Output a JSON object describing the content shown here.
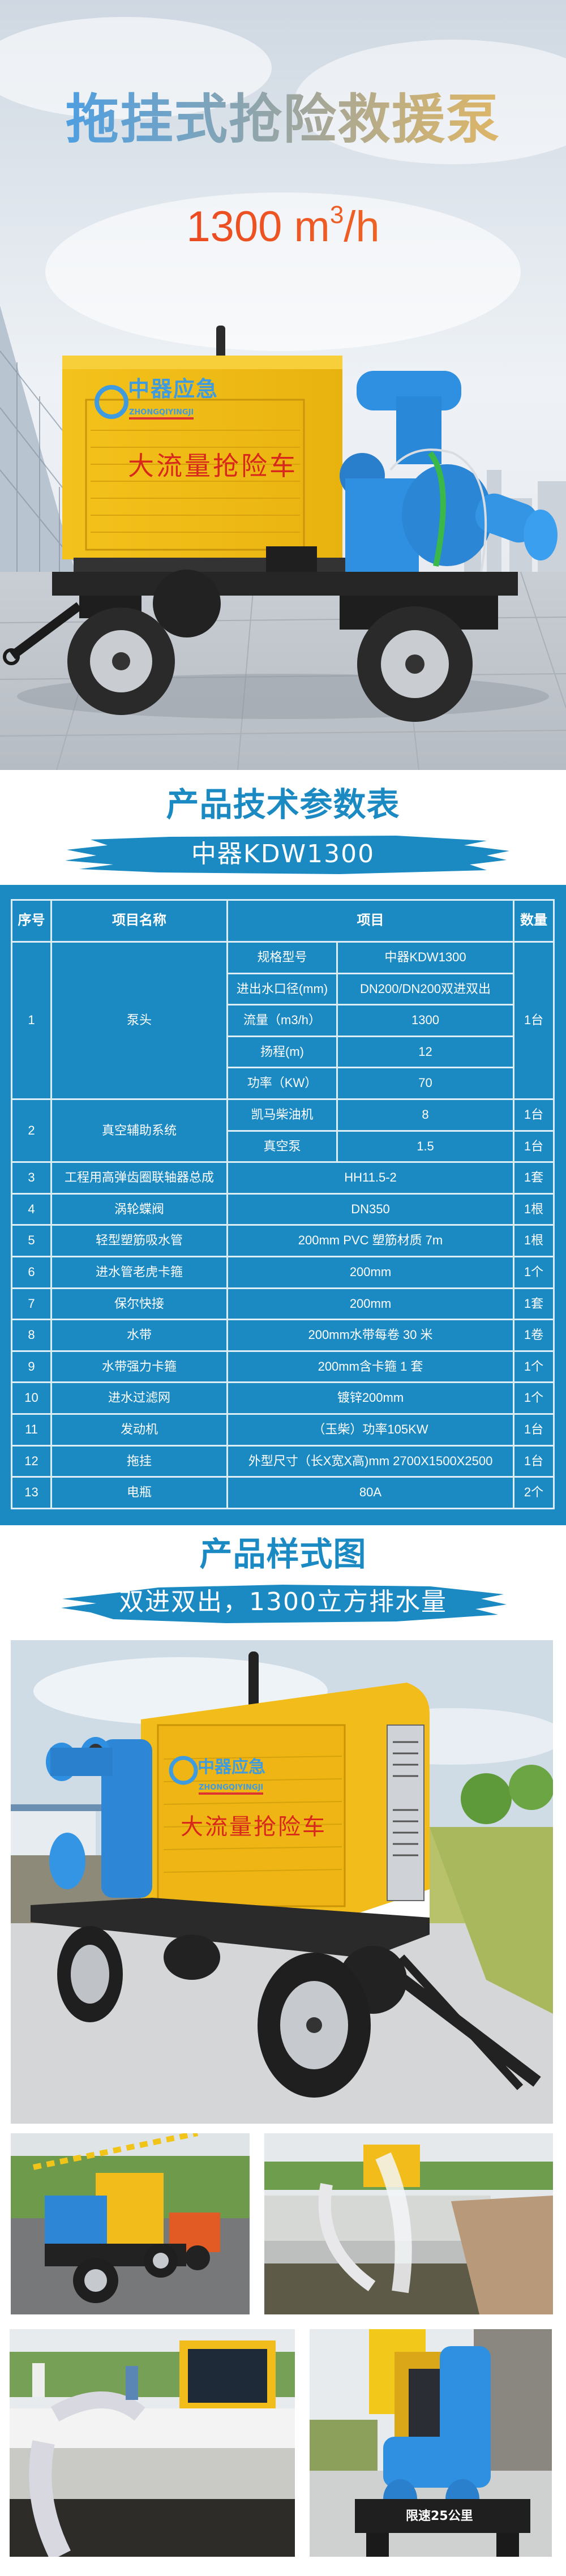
{
  "hero": {
    "title": "拖挂式抢险救援泵",
    "flow_number": "1300 m",
    "flow_sup": "3",
    "flow_unit": "/h"
  },
  "truck_markings": {
    "logo_cn": "中器应急",
    "logo_en": "ZHONGQIYINGJI",
    "slogan": "大流量抢险车",
    "speed_limit": "限速25公里"
  },
  "spec_section": {
    "title": "产品技术参数表",
    "model_banner": "中器KDW1300",
    "headers": [
      "序号",
      "项目名称",
      "项目",
      "数量"
    ],
    "group1": {
      "no": "1",
      "name": "泵头",
      "qty": "1台",
      "specs": [
        {
          "label": "规格型号",
          "value": "中器KDW1300"
        },
        {
          "label": "进出水口径(mm)",
          "value": "DN200/DN200双进双出"
        },
        {
          "label": "流量（m3/h）",
          "value": "1300"
        },
        {
          "label": "扬程(m)",
          "value": "12"
        },
        {
          "label": "功率（KW）",
          "value": "70"
        }
      ]
    },
    "group2": {
      "no": "2",
      "name": "真空辅助系统",
      "specs": [
        {
          "label": "凯马柴油机",
          "value": "8",
          "qty": "1台"
        },
        {
          "label": "真空泵",
          "value": "1.5",
          "qty": "1台"
        }
      ]
    },
    "rows": [
      {
        "no": "3",
        "name": "工程用高弹齿圈联轴器总成",
        "value": "HH11.5-2",
        "qty": "1套"
      },
      {
        "no": "4",
        "name": "涡轮蝶阀",
        "value": "DN350",
        "qty": "1根"
      },
      {
        "no": "5",
        "name": "轻型塑筋吸水管",
        "value": "200mm PVC 塑筋材质 7m",
        "qty": "1根"
      },
      {
        "no": "6",
        "name": "进水管老虎卡箍",
        "value": "200mm",
        "qty": "1个"
      },
      {
        "no": "7",
        "name": "保尔快接",
        "value": "200mm",
        "qty": "1套"
      },
      {
        "no": "8",
        "name": "水带",
        "value": "200mm水带每卷 30 米",
        "qty": "1卷"
      },
      {
        "no": "9",
        "name": "水带强力卡箍",
        "value": "200mm含卡箍 1 套",
        "qty": "1个"
      },
      {
        "no": "10",
        "name": "进水过滤网",
        "value": "镀锌200mm",
        "qty": "1个"
      },
      {
        "no": "11",
        "name": "发动机",
        "value": "（玉柴）功率105KW",
        "qty": "1台"
      },
      {
        "no": "12",
        "name": "拖挂",
        "value": "外型尺寸（长X宽X高)mm 2700X1500X2500",
        "qty": "1台"
      },
      {
        "no": "13",
        "name": "电瓶",
        "value": "80A",
        "qty": "2个"
      }
    ]
  },
  "photos_section": {
    "title": "产品样式图",
    "subtitle": "双进双出，1300立方排水量"
  },
  "colors": {
    "brand_blue": "#1b8ac3",
    "truck_yellow": "#f2bd1a",
    "pump_blue": "#2f8fe0",
    "flow_red": "#e8321c"
  }
}
